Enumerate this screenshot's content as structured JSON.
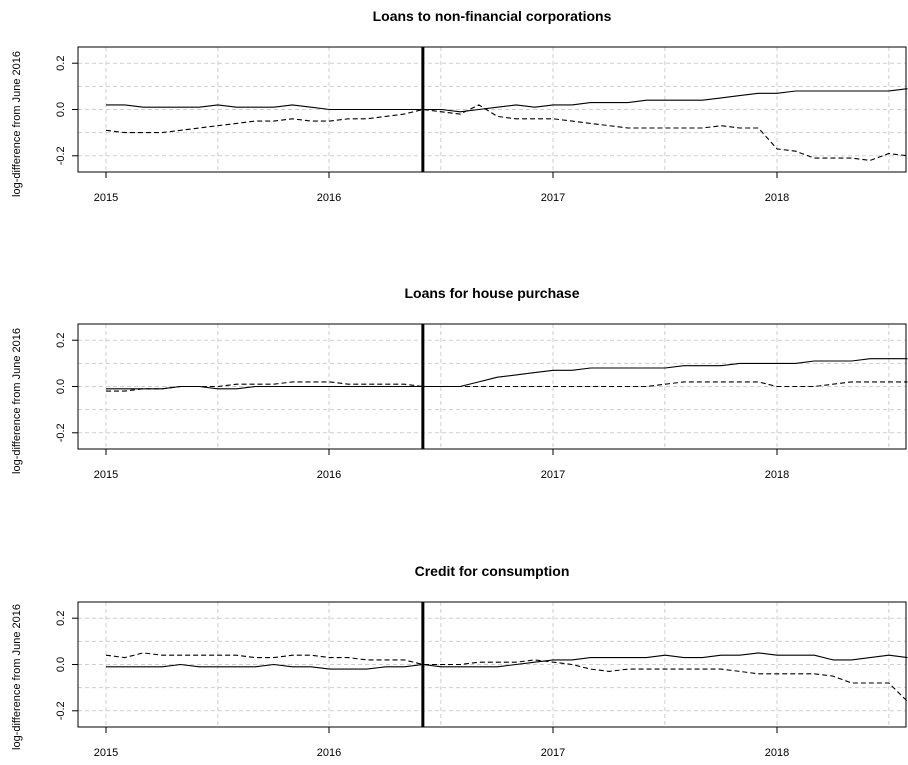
{
  "chart_data": [
    {
      "type": "line",
      "title": "Loans to non-financial corporations",
      "ylabel": "log-difference from June 2016",
      "xlabel": "",
      "x_ticks": [
        "2015",
        "2016",
        "2017",
        "2018"
      ],
      "y_ticks": [
        "-0.2",
        "0.0",
        "0.2"
      ],
      "xlim": [
        "2015-01",
        "2018-08"
      ],
      "ylim": [
        -0.27,
        0.27
      ],
      "grid": true,
      "reference_line": "2016-06",
      "x": [
        "2015-01",
        "2015-02",
        "2015-03",
        "2015-04",
        "2015-05",
        "2015-06",
        "2015-07",
        "2015-08",
        "2015-09",
        "2015-10",
        "2015-11",
        "2015-12",
        "2016-01",
        "2016-02",
        "2016-03",
        "2016-04",
        "2016-05",
        "2016-06",
        "2016-07",
        "2016-08",
        "2016-09",
        "2016-10",
        "2016-11",
        "2016-12",
        "2017-01",
        "2017-02",
        "2017-03",
        "2017-04",
        "2017-05",
        "2017-06",
        "2017-07",
        "2017-08",
        "2017-09",
        "2017-10",
        "2017-11",
        "2017-12",
        "2018-01",
        "2018-02",
        "2018-03",
        "2018-04",
        "2018-05",
        "2018-06",
        "2018-07",
        "2018-08"
      ],
      "series": [
        {
          "style": "solid",
          "values": [
            0.02,
            0.02,
            0.01,
            0.01,
            0.01,
            0.01,
            0.02,
            0.01,
            0.01,
            0.01,
            0.02,
            0.01,
            0.0,
            0.0,
            0.0,
            0.0,
            0.0,
            0.0,
            0.0,
            -0.01,
            0.0,
            0.01,
            0.02,
            0.01,
            0.02,
            0.02,
            0.03,
            0.03,
            0.03,
            0.04,
            0.04,
            0.04,
            0.04,
            0.05,
            0.06,
            0.07,
            0.07,
            0.08,
            0.08,
            0.08,
            0.08,
            0.08,
            0.08,
            0.09
          ]
        },
        {
          "style": "dashed",
          "values": [
            -0.09,
            -0.1,
            -0.1,
            -0.1,
            -0.09,
            -0.08,
            -0.07,
            -0.06,
            -0.05,
            -0.05,
            -0.04,
            -0.05,
            -0.05,
            -0.04,
            -0.04,
            -0.03,
            -0.02,
            0.0,
            -0.01,
            -0.02,
            0.02,
            -0.03,
            -0.04,
            -0.04,
            -0.04,
            -0.05,
            -0.06,
            -0.07,
            -0.08,
            -0.08,
            -0.08,
            -0.08,
            -0.08,
            -0.07,
            -0.08,
            -0.08,
            -0.17,
            -0.18,
            -0.21,
            -0.21,
            -0.21,
            -0.22,
            -0.19,
            -0.2
          ]
        }
      ]
    },
    {
      "type": "line",
      "title": "Loans for house purchase",
      "ylabel": "log-difference from June 2016",
      "xlabel": "",
      "x_ticks": [
        "2015",
        "2016",
        "2017",
        "2018"
      ],
      "y_ticks": [
        "-0.2",
        "0.0",
        "0.2"
      ],
      "xlim": [
        "2015-01",
        "2018-08"
      ],
      "ylim": [
        -0.27,
        0.27
      ],
      "grid": true,
      "reference_line": "2016-06",
      "x": [
        "2015-01",
        "2015-02",
        "2015-03",
        "2015-04",
        "2015-05",
        "2015-06",
        "2015-07",
        "2015-08",
        "2015-09",
        "2015-10",
        "2015-11",
        "2015-12",
        "2016-01",
        "2016-02",
        "2016-03",
        "2016-04",
        "2016-05",
        "2016-06",
        "2016-07",
        "2016-08",
        "2016-09",
        "2016-10",
        "2016-11",
        "2016-12",
        "2017-01",
        "2017-02",
        "2017-03",
        "2017-04",
        "2017-05",
        "2017-06",
        "2017-07",
        "2017-08",
        "2017-09",
        "2017-10",
        "2017-11",
        "2017-12",
        "2018-01",
        "2018-02",
        "2018-03",
        "2018-04",
        "2018-05",
        "2018-06",
        "2018-07",
        "2018-08"
      ],
      "series": [
        {
          "style": "solid",
          "values": [
            -0.01,
            -0.01,
            -0.01,
            -0.01,
            0.0,
            0.0,
            -0.01,
            -0.01,
            0.0,
            0.0,
            0.0,
            0.0,
            0.0,
            0.0,
            0.0,
            0.0,
            0.0,
            0.0,
            0.0,
            0.0,
            0.02,
            0.04,
            0.05,
            0.06,
            0.07,
            0.07,
            0.08,
            0.08,
            0.08,
            0.08,
            0.08,
            0.09,
            0.09,
            0.09,
            0.1,
            0.1,
            0.1,
            0.1,
            0.11,
            0.11,
            0.11,
            0.12,
            0.12,
            0.12
          ]
        },
        {
          "style": "dashed",
          "values": [
            -0.02,
            -0.02,
            -0.01,
            -0.01,
            0.0,
            0.0,
            0.0,
            0.01,
            0.01,
            0.01,
            0.02,
            0.02,
            0.02,
            0.01,
            0.01,
            0.01,
            0.01,
            0.0,
            0.0,
            0.0,
            0.0,
            0.0,
            0.0,
            0.0,
            0.0,
            0.0,
            0.0,
            0.0,
            0.0,
            0.0,
            0.01,
            0.02,
            0.02,
            0.02,
            0.02,
            0.02,
            0.0,
            0.0,
            0.0,
            0.01,
            0.02,
            0.02,
            0.02,
            0.02
          ]
        }
      ]
    },
    {
      "type": "line",
      "title": "Credit for consumption",
      "ylabel": "log-difference from June 2016",
      "xlabel": "",
      "x_ticks": [
        "2015",
        "2016",
        "2017",
        "2018"
      ],
      "y_ticks": [
        "-0.2",
        "0.0",
        "0.2"
      ],
      "xlim": [
        "2015-01",
        "2018-08"
      ],
      "ylim": [
        -0.27,
        0.27
      ],
      "grid": true,
      "reference_line": "2016-06",
      "x": [
        "2015-01",
        "2015-02",
        "2015-03",
        "2015-04",
        "2015-05",
        "2015-06",
        "2015-07",
        "2015-08",
        "2015-09",
        "2015-10",
        "2015-11",
        "2015-12",
        "2016-01",
        "2016-02",
        "2016-03",
        "2016-04",
        "2016-05",
        "2016-06",
        "2016-07",
        "2016-08",
        "2016-09",
        "2016-10",
        "2016-11",
        "2016-12",
        "2017-01",
        "2017-02",
        "2017-03",
        "2017-04",
        "2017-05",
        "2017-06",
        "2017-07",
        "2017-08",
        "2017-09",
        "2017-10",
        "2017-11",
        "2017-12",
        "2018-01",
        "2018-02",
        "2018-03",
        "2018-04",
        "2018-05",
        "2018-06",
        "2018-07",
        "2018-08"
      ],
      "series": [
        {
          "style": "solid",
          "values": [
            -0.01,
            -0.01,
            -0.01,
            -0.01,
            0.0,
            -0.01,
            -0.01,
            -0.01,
            -0.01,
            0.0,
            -0.01,
            -0.01,
            -0.02,
            -0.02,
            -0.02,
            -0.01,
            -0.01,
            0.0,
            -0.01,
            -0.01,
            -0.01,
            -0.01,
            0.0,
            0.01,
            0.02,
            0.02,
            0.03,
            0.03,
            0.03,
            0.03,
            0.04,
            0.03,
            0.03,
            0.04,
            0.04,
            0.05,
            0.04,
            0.04,
            0.04,
            0.02,
            0.02,
            0.03,
            0.04,
            0.03
          ]
        },
        {
          "style": "dashed",
          "values": [
            0.04,
            0.03,
            0.05,
            0.04,
            0.04,
            0.04,
            0.04,
            0.04,
            0.03,
            0.03,
            0.04,
            0.04,
            0.03,
            0.03,
            0.02,
            0.02,
            0.02,
            0.0,
            0.0,
            0.0,
            0.01,
            0.01,
            0.01,
            0.02,
            0.01,
            0.0,
            -0.02,
            -0.03,
            -0.02,
            -0.02,
            -0.02,
            -0.02,
            -0.02,
            -0.02,
            -0.03,
            -0.04,
            -0.04,
            -0.04,
            -0.04,
            -0.05,
            -0.08,
            -0.08,
            -0.08,
            -0.16
          ]
        }
      ]
    }
  ]
}
